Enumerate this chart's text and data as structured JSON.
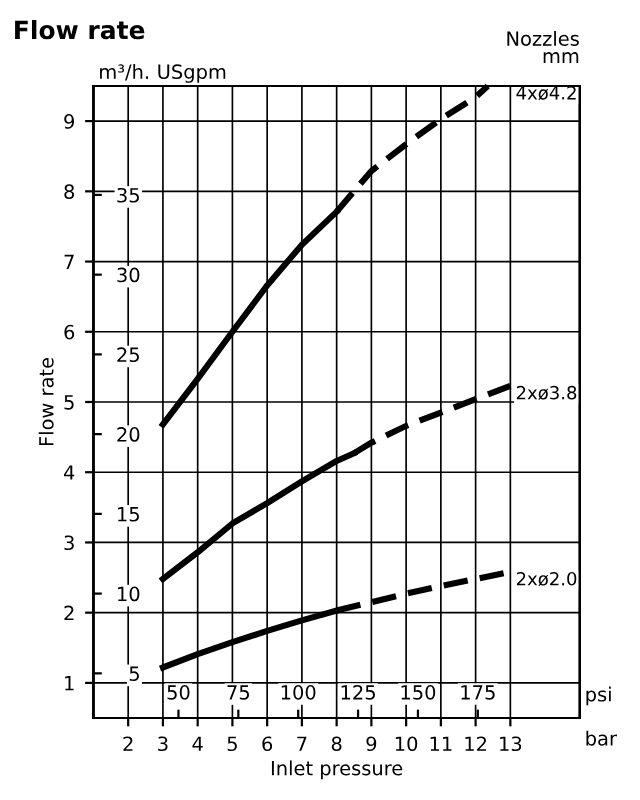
{
  "chart_data": {
    "type": "line",
    "title": "Flow rate",
    "xlabel": "Inlet pressure",
    "ylabel": "Flow rate",
    "annotations": [
      "m³/h.",
      "USgpm",
      "Nozzles\nmm",
      "psi",
      "bar"
    ],
    "series": [
      {
        "color": "#000000",
        "line_style": "solid",
        "x": [
          3,
          4,
          5,
          6,
          7,
          8
        ],
        "values": [
          4.68,
          5.33,
          6.0,
          6.66,
          7.24,
          7.71
        ]
      },
      {
        "name": "4xø4.2",
        "color": "#000000",
        "line_style": "dashed",
        "x": [
          8,
          9,
          10,
          11,
          12,
          12.35
        ],
        "values": [
          7.71,
          8.29,
          8.67,
          9.03,
          9.34,
          9.5
        ]
      },
      {
        "color": "#000000",
        "line_style": "solid",
        "x": [
          3,
          4,
          5,
          6,
          7,
          8,
          8.5
        ],
        "values": [
          2.48,
          2.86,
          3.27,
          3.56,
          3.87,
          4.16,
          4.27
        ]
      },
      {
        "name": "2xø3.8",
        "color": "#000000",
        "line_style": "dashed",
        "x": [
          8.5,
          9,
          10,
          11,
          12,
          13
        ],
        "values": [
          4.27,
          4.42,
          4.66,
          4.85,
          5.04,
          5.23
        ]
      },
      {
        "color": "#000000",
        "line_style": "solid",
        "x": [
          3,
          4,
          5,
          6,
          7,
          8
        ],
        "values": [
          1.22,
          1.41,
          1.58,
          1.74,
          1.89,
          2.03
        ]
      },
      {
        "name": "2xø2.0",
        "color": "#000000",
        "line_style": "dashed",
        "x": [
          8,
          9,
          10,
          11,
          12,
          13
        ],
        "values": [
          2.03,
          2.15,
          2.27,
          2.38,
          2.48,
          2.58
        ]
      }
    ],
    "xlim": [
      1,
      15
    ],
    "xticks": [
      2,
      3,
      4,
      5,
      6,
      7,
      8,
      9,
      10,
      11,
      12,
      13
    ],
    "ylim": [
      0.5,
      9.5
    ],
    "yticks": [
      1,
      2,
      3,
      4,
      5,
      6,
      7,
      8,
      9
    ],
    "y2lim": [
      2.2,
      41.83
    ],
    "y2ticks": [
      5,
      10,
      15,
      20,
      25,
      30,
      35
    ],
    "x2lim": [
      14.5,
      217.6
    ],
    "x2ticks": [
      50,
      75,
      100,
      125,
      150,
      175
    ],
    "grid": true,
    "marker": "none"
  }
}
